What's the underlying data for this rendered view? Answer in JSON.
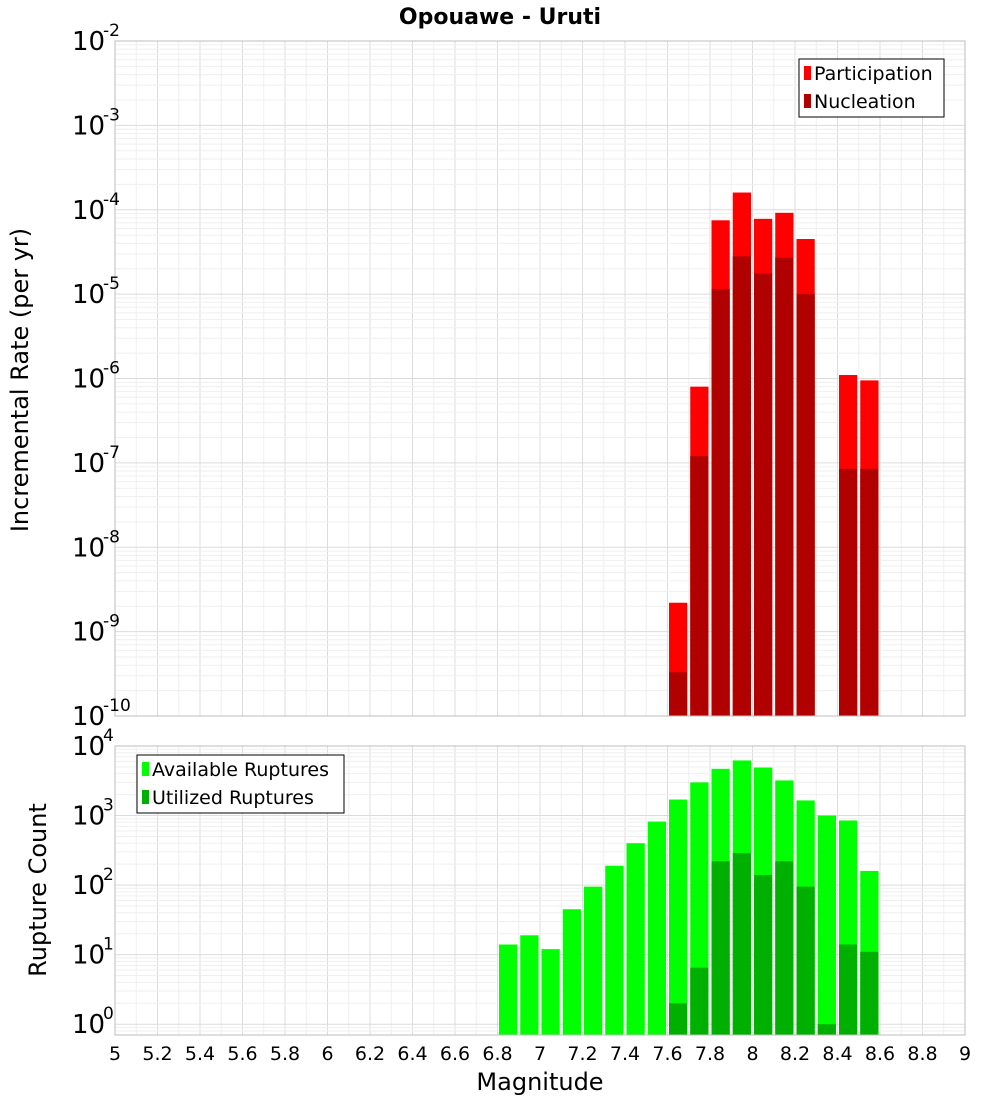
{
  "chart_data": [
    {
      "type": "bar",
      "scale": "log",
      "title": "Opouawe - Uruti",
      "ylabel": "Incremental Rate (per yr)",
      "xlabel": "",
      "xlim": [
        5,
        9
      ],
      "ylim": [
        1e-10,
        0.01
      ],
      "y_tick_exponents": [
        "-10",
        "-9",
        "-8",
        "-7",
        "-6",
        "-5",
        "-4",
        "-3",
        "-2"
      ],
      "legend": {
        "position": "top-right",
        "entries": [
          "Participation",
          "Nucleation"
        ]
      },
      "colors": {
        "Participation": "#ff0000",
        "Nucleation": "#b00000"
      },
      "x": [
        7.65,
        7.75,
        7.85,
        7.95,
        8.05,
        8.15,
        8.25,
        8.35,
        8.45,
        8.55
      ],
      "series": [
        {
          "name": "Participation",
          "values": [
            2.2e-09,
            8e-07,
            7.5e-05,
            0.00016,
            7.8e-05,
            9.2e-05,
            4.5e-05,
            0,
            1.1e-06,
            9.5e-07
          ]
        },
        {
          "name": "Nucleation",
          "values": [
            3.3e-10,
            1.2e-07,
            1.15e-05,
            2.8e-05,
            1.75e-05,
            2.7e-05,
            1e-05,
            0,
            8.5e-08,
            8.5e-08
          ]
        }
      ]
    },
    {
      "type": "bar",
      "scale": "log",
      "title": "",
      "ylabel": "Rupture Count",
      "xlabel": "Magnitude",
      "xlim": [
        5,
        9
      ],
      "ylim": [
        0.7,
        10000
      ],
      "y_tick_exponents": [
        "0",
        "1",
        "2",
        "3",
        "4"
      ],
      "x_tick_labels": [
        "5",
        "5.2",
        "5.4",
        "5.6",
        "5.8",
        "6",
        "6.2",
        "6.4",
        "6.6",
        "6.8",
        "7",
        "7.2",
        "7.4",
        "7.6",
        "7.8",
        "8",
        "8.2",
        "8.4",
        "8.6",
        "8.8",
        "9"
      ],
      "legend": {
        "position": "top-left",
        "entries": [
          "Available Ruptures",
          "Utilized Ruptures"
        ]
      },
      "colors": {
        "Available Ruptures": "#00ff00",
        "Utilized Ruptures": "#00b000"
      },
      "x": [
        6.85,
        6.95,
        7.05,
        7.15,
        7.25,
        7.35,
        7.45,
        7.55,
        7.65,
        7.75,
        7.85,
        7.95,
        8.05,
        8.15,
        8.25,
        8.35,
        8.45,
        8.55
      ],
      "series": [
        {
          "name": "Available Ruptures",
          "values": [
            14,
            19,
            12,
            45,
            95,
            190,
            400,
            820,
            1700,
            3000,
            4700,
            6200,
            4900,
            3200,
            1650,
            1000,
            850,
            160
          ]
        },
        {
          "name": "Utilized Ruptures",
          "values": [
            0,
            0,
            0,
            0,
            0,
            0,
            0,
            0,
            2,
            6.5,
            220,
            290,
            140,
            220,
            95,
            1,
            14,
            11
          ]
        }
      ]
    }
  ]
}
